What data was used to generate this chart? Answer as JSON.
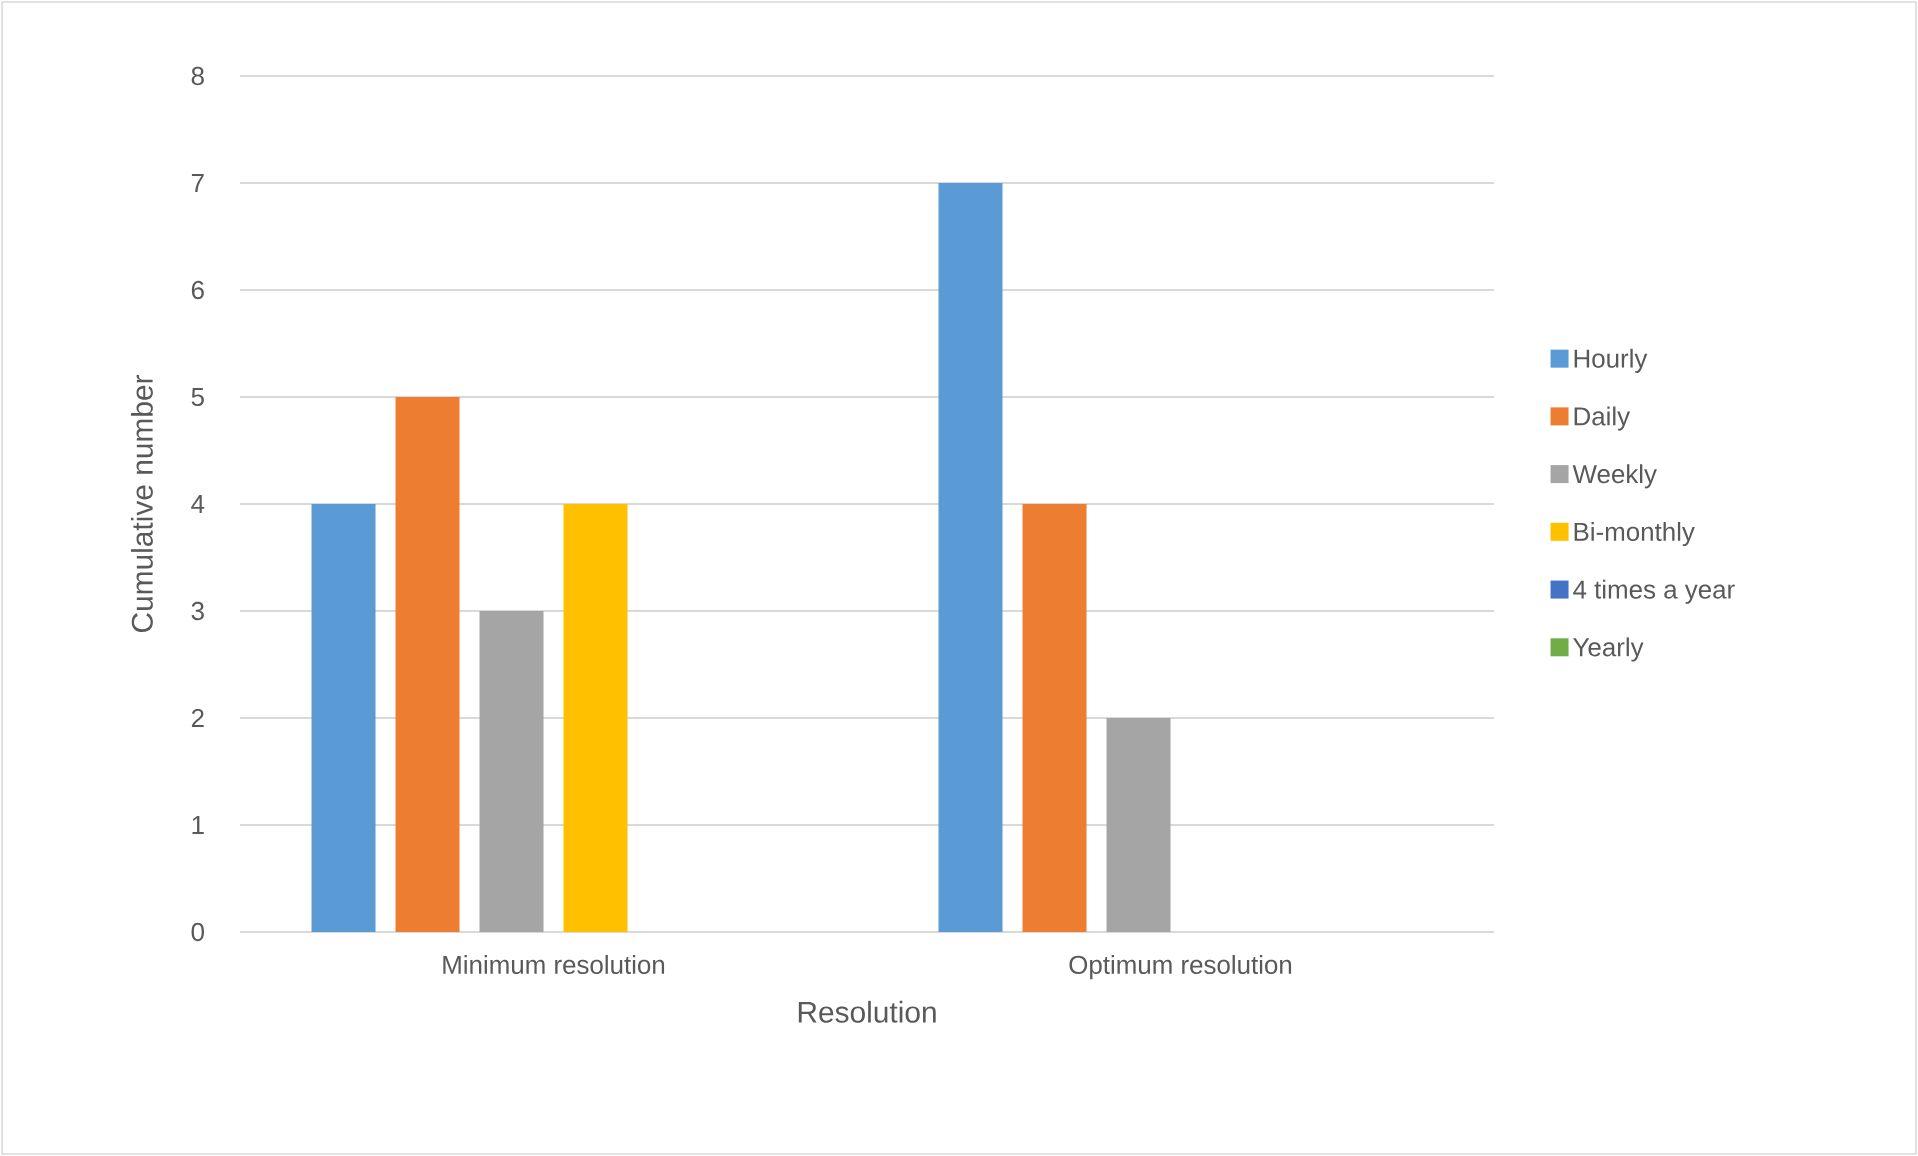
{
  "chart_data": {
    "type": "bar",
    "xlabel": "Resolution",
    "ylabel": "Cumulative number",
    "categories": [
      "Minimum resolution",
      "Optimum resolution"
    ],
    "series": [
      {
        "name": "Hourly",
        "color": "#5b9bd5",
        "values": [
          4,
          7
        ]
      },
      {
        "name": "Daily",
        "color": "#ed7d31",
        "values": [
          5,
          4
        ]
      },
      {
        "name": "Weekly",
        "color": "#a5a5a5",
        "values": [
          3,
          2
        ]
      },
      {
        "name": "Bi-monthly",
        "color": "#ffc000",
        "values": [
          4,
          0
        ]
      },
      {
        "name": "4 times a year",
        "color": "#4472c4",
        "values": [
          0,
          0
        ]
      },
      {
        "name": "Yearly",
        "color": "#70ad47",
        "values": [
          0,
          0
        ]
      }
    ],
    "ylim": [
      0,
      8
    ],
    "yticks": [
      0,
      1,
      2,
      3,
      4,
      5,
      6,
      7,
      8
    ],
    "grid": "y",
    "legend": "right"
  }
}
